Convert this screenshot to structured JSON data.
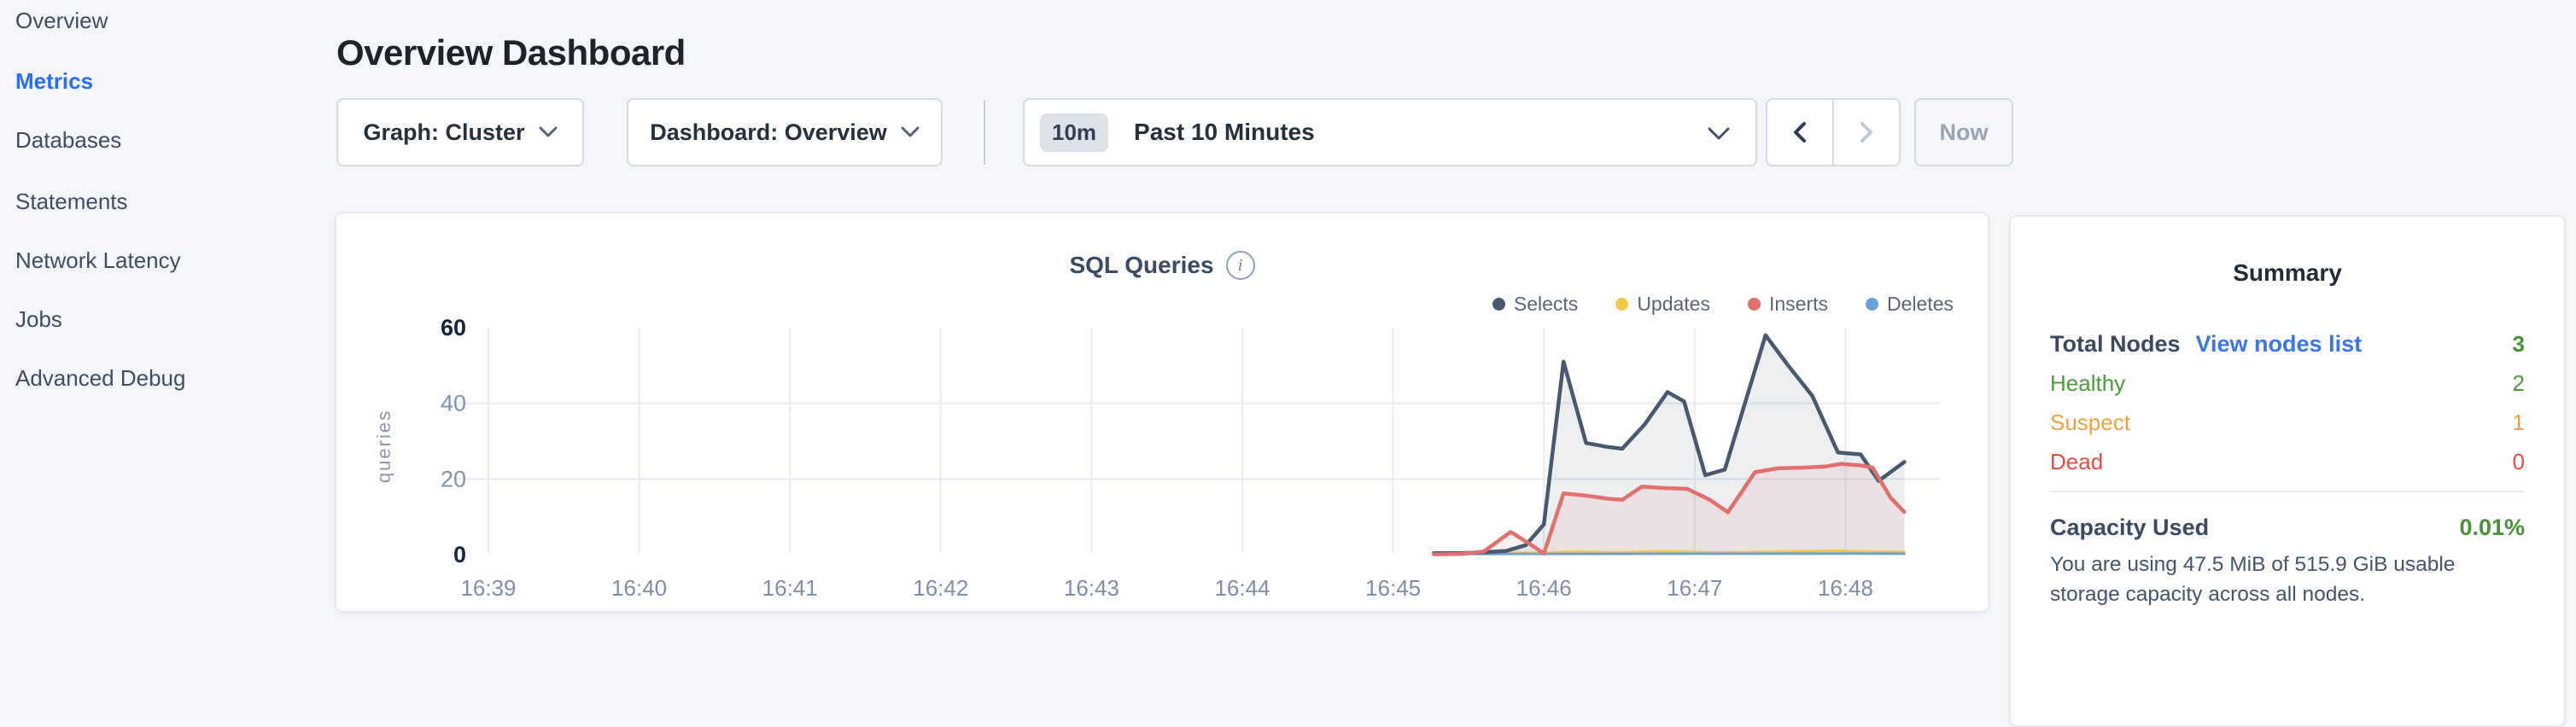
{
  "sidebar": {
    "items": [
      {
        "id": "overview",
        "label": "Overview",
        "active": false
      },
      {
        "id": "metrics",
        "label": "Metrics",
        "active": true
      },
      {
        "id": "databases",
        "label": "Databases",
        "active": false
      },
      {
        "id": "statements",
        "label": "Statements",
        "active": false
      },
      {
        "id": "network-latency",
        "label": "Network Latency",
        "active": false
      },
      {
        "id": "jobs",
        "label": "Jobs",
        "active": false
      },
      {
        "id": "advanced-debug",
        "label": "Advanced Debug",
        "active": false
      }
    ]
  },
  "header": {
    "title": "Overview Dashboard"
  },
  "toolbar": {
    "graph_dropdown": {
      "label": "Graph: Cluster"
    },
    "dashboard_dropdown": {
      "label": "Dashboard: Overview"
    },
    "time_picker": {
      "badge": "10m",
      "label": "Past 10 Minutes"
    },
    "prev_button": {
      "enabled": true
    },
    "next_button": {
      "enabled": false
    },
    "now_button": {
      "label": "Now",
      "enabled": false
    }
  },
  "chart_data": {
    "type": "area",
    "title": "SQL Queries",
    "info_glyph": "i",
    "ylabel": "queries",
    "ylim": [
      0,
      60
    ],
    "grid": true,
    "legend_position": "top-right",
    "y_ticks": [
      {
        "v": 0,
        "label": "0",
        "strong": true,
        "grid": false
      },
      {
        "v": 20,
        "label": "20",
        "strong": false,
        "grid": true
      },
      {
        "v": 40,
        "label": "40",
        "strong": false,
        "grid": true
      },
      {
        "v": 60,
        "label": "60",
        "strong": true,
        "grid": false
      }
    ],
    "x_ticks": [
      {
        "m": 39,
        "label": "16:39"
      },
      {
        "m": 40,
        "label": "16:40"
      },
      {
        "m": 41,
        "label": "16:41"
      },
      {
        "m": 42,
        "label": "16:42"
      },
      {
        "m": 43,
        "label": "16:43"
      },
      {
        "m": 44,
        "label": "16:44"
      },
      {
        "m": 45,
        "label": "16:45"
      },
      {
        "m": 46,
        "label": "16:46"
      },
      {
        "m": 47,
        "label": "16:47"
      },
      {
        "m": 48,
        "label": "16:48"
      }
    ],
    "x_unit": "clock minutes after 16:00 (45.5 = 16:45:30)",
    "series": [
      {
        "name": "Selects",
        "color": "#48586f",
        "fill": "rgba(72,88,111,0.10)",
        "width": 4.5,
        "points": [
          [
            45.27,
            0.4
          ],
          [
            45.45,
            0.4
          ],
          [
            45.6,
            0.6
          ],
          [
            45.75,
            1
          ],
          [
            45.88,
            2.5
          ],
          [
            46.0,
            8
          ],
          [
            46.13,
            51
          ],
          [
            46.28,
            29.5
          ],
          [
            46.42,
            28.5
          ],
          [
            46.52,
            28
          ],
          [
            46.67,
            34.5
          ],
          [
            46.82,
            43
          ],
          [
            46.93,
            40.5
          ],
          [
            47.07,
            21
          ],
          [
            47.2,
            22.5
          ],
          [
            47.47,
            58
          ],
          [
            47.62,
            50
          ],
          [
            47.78,
            42
          ],
          [
            47.95,
            27
          ],
          [
            48.1,
            26.5
          ],
          [
            48.22,
            19.5
          ],
          [
            48.39,
            24.5
          ]
        ]
      },
      {
        "name": "Updates",
        "color": "#f2c94d",
        "fill": "none",
        "width": 3,
        "points": [
          [
            45.27,
            0.3
          ],
          [
            45.7,
            0.4
          ],
          [
            46.0,
            0.5
          ],
          [
            46.2,
            0.8
          ],
          [
            46.5,
            0.6
          ],
          [
            46.8,
            0.9
          ],
          [
            47.1,
            0.6
          ],
          [
            47.4,
            0.7
          ],
          [
            47.7,
            0.9
          ],
          [
            47.95,
            1
          ],
          [
            48.15,
            0.8
          ],
          [
            48.39,
            0.7
          ]
        ]
      },
      {
        "name": "Inserts",
        "color": "#e1706c",
        "fill": "rgba(225,112,108,0.10)",
        "width": 4.5,
        "points": [
          [
            45.27,
            0.1
          ],
          [
            45.45,
            0.2
          ],
          [
            45.6,
            0.8
          ],
          [
            45.78,
            6
          ],
          [
            45.9,
            3
          ],
          [
            46.0,
            0.3
          ],
          [
            46.13,
            16.2
          ],
          [
            46.28,
            15.6
          ],
          [
            46.42,
            14.8
          ],
          [
            46.52,
            14.5
          ],
          [
            46.65,
            18
          ],
          [
            46.8,
            17.6
          ],
          [
            46.95,
            17.4
          ],
          [
            47.1,
            14.5
          ],
          [
            47.22,
            11.2
          ],
          [
            47.4,
            21.8
          ],
          [
            47.55,
            22.8
          ],
          [
            47.72,
            23
          ],
          [
            47.87,
            23.3
          ],
          [
            47.97,
            24
          ],
          [
            48.1,
            23.6
          ],
          [
            48.18,
            23
          ],
          [
            48.3,
            15
          ],
          [
            48.39,
            11.3
          ]
        ]
      },
      {
        "name": "Deletes",
        "color": "#67a3d8",
        "fill": "none",
        "width": 3,
        "points": [
          [
            45.27,
            0.15
          ],
          [
            46.0,
            0.2
          ],
          [
            47.0,
            0.25
          ],
          [
            48.0,
            0.3
          ],
          [
            48.39,
            0.25
          ]
        ]
      }
    ]
  },
  "summary": {
    "title": "Summary",
    "total": {
      "label": "Total Nodes",
      "link": "View nodes list",
      "value": "3",
      "value_color": "#469335"
    },
    "node_status": [
      {
        "id": "healthy",
        "label": "Healthy",
        "value": "2",
        "color": "#4a9c35"
      },
      {
        "id": "suspect",
        "label": "Suspect",
        "value": "1",
        "color": "#f0a23c"
      },
      {
        "id": "dead",
        "label": "Dead",
        "value": "0",
        "color": "#e74c3f"
      }
    ],
    "capacity": {
      "label": "Capacity Used",
      "value": "0.01%",
      "value_color": "#469335",
      "description": "You are using 47.5 MiB of 515.9 GiB usable storage capacity across all nodes."
    }
  }
}
